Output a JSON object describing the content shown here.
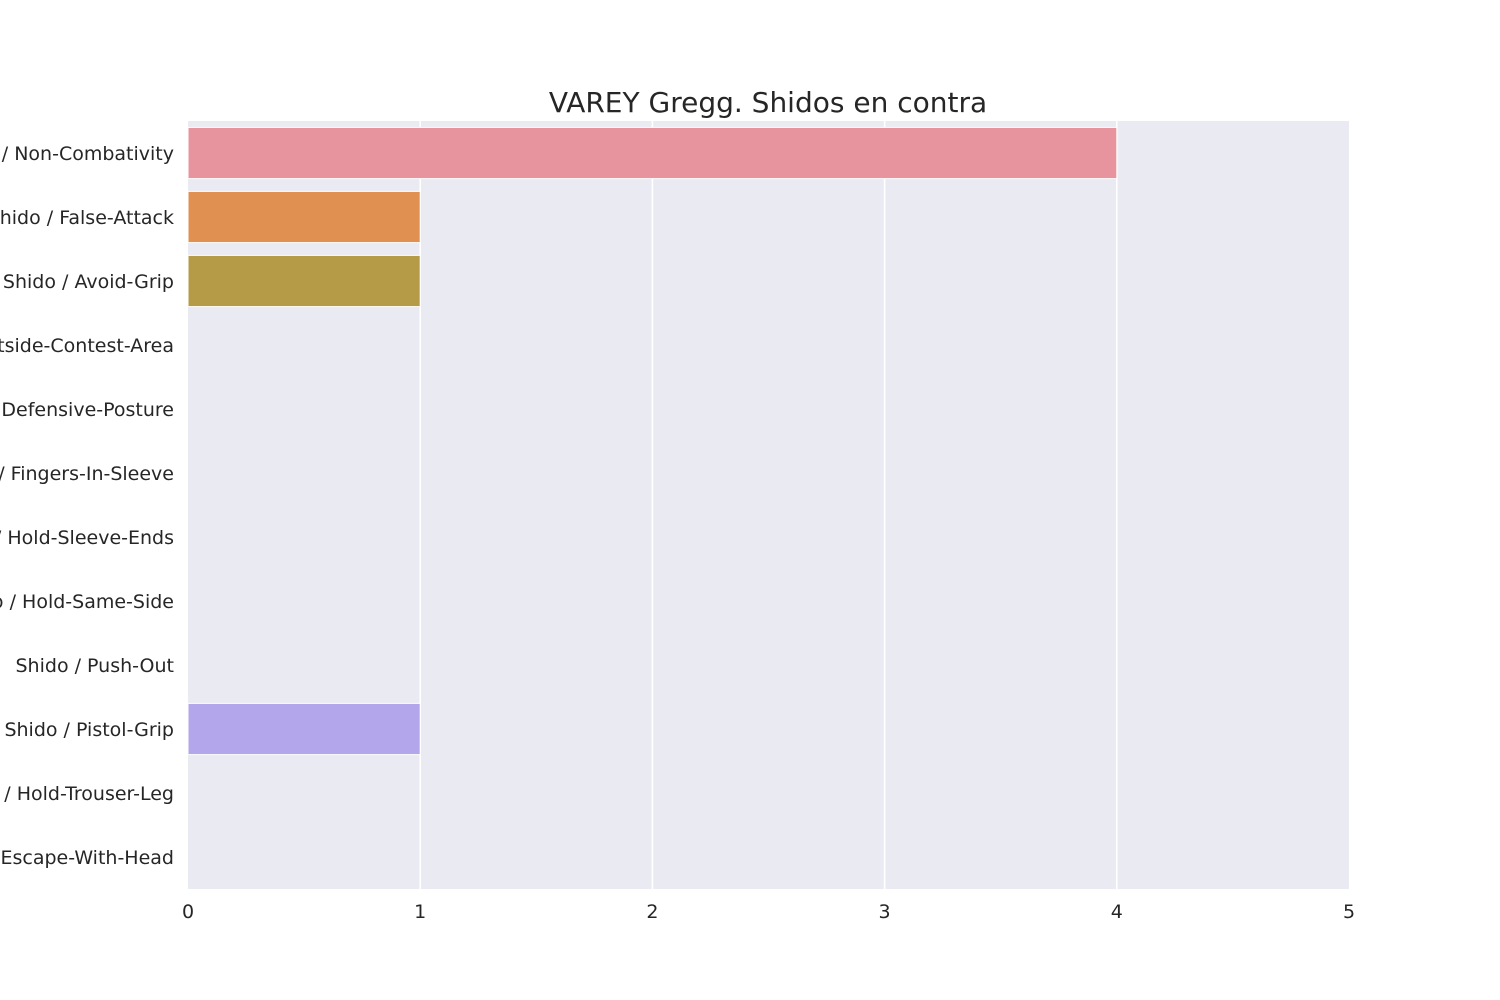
{
  "chart_data": {
    "type": "bar",
    "orientation": "horizontal",
    "title": "VAREY Gregg. Shidos en contra",
    "xlabel": "",
    "ylabel": "",
    "xlim": [
      0,
      5
    ],
    "xticks": [
      "0",
      "1",
      "2",
      "3",
      "4",
      "5"
    ],
    "grid": true,
    "categories": [
      "Shido / Non-Combativity",
      "Shido / False-Attack",
      "Shido / Avoid-Grip",
      "Shido / Outside-Contest-Area",
      "Shido / Defensive-Posture",
      "Shido / Fingers-In-Sleeve",
      "Shido / Hold-Sleeve-Ends",
      "Shido / Hold-Same-Side",
      "Shido / Push-Out",
      "Shido / Pistol-Grip",
      "Shido / Hold-Trouser-Leg",
      "Shido / Escape-With-Head"
    ],
    "values": [
      4,
      1,
      1,
      0,
      0,
      0,
      0,
      0,
      0,
      1,
      0,
      0
    ],
    "colors": [
      "#e8949f",
      "#e09050",
      "#b59b48",
      "#8ea64a",
      "#4fae62",
      "#4eab8e",
      "#51a9a5",
      "#54a7bf",
      "#7caee3",
      "#b4a6eb",
      "#de93e0",
      "#e890c0"
    ],
    "background_color": "#eaeaf2",
    "grid_color": "#ffffff"
  }
}
